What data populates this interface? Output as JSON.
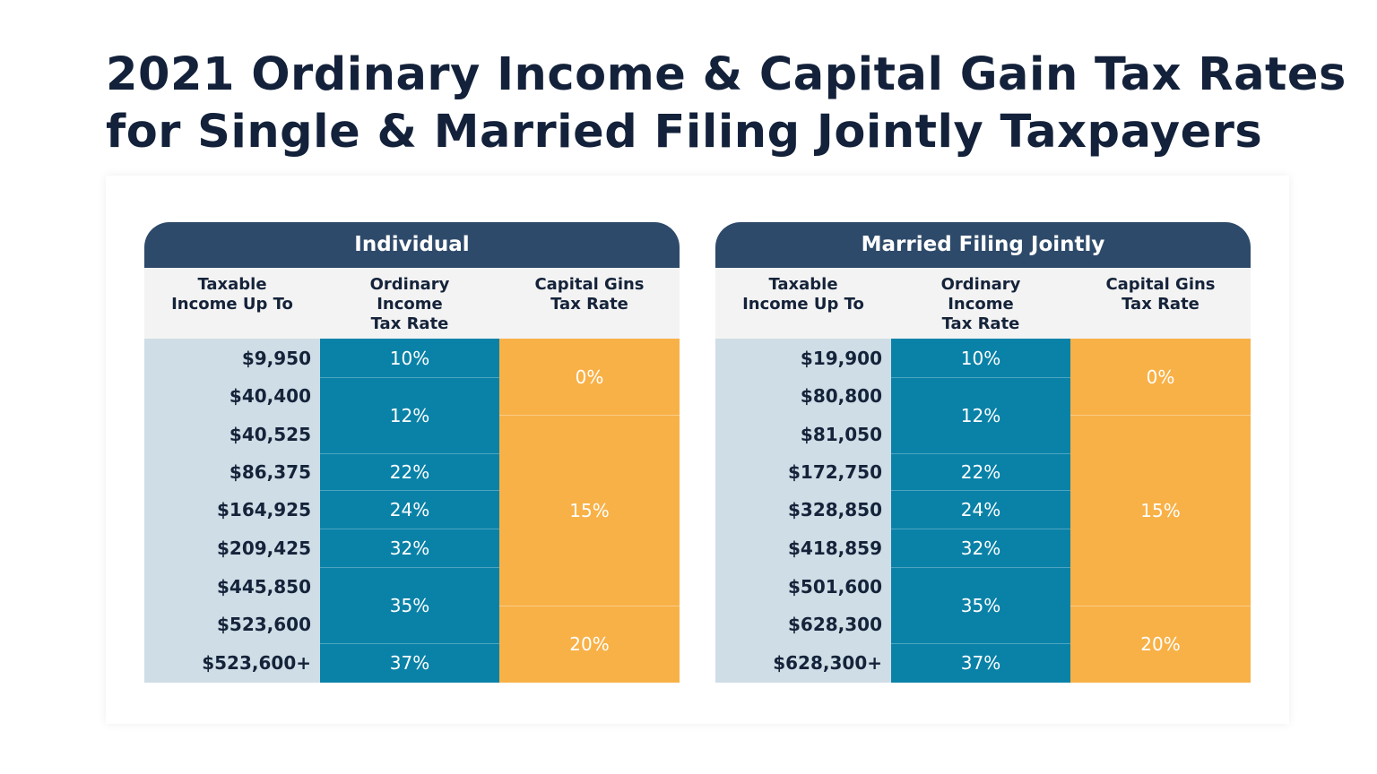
{
  "title": {
    "line1": "2021 Ordinary Income & Capital Gain Tax Rates",
    "line2": "for Single & Married Filing Jointly Taxpayers"
  },
  "chart_data": {
    "type": "table",
    "title": "2021 Ordinary Income & Capital Gain Tax Rates for Single & Married Filing Jointly Taxpayers",
    "tables": [
      {
        "name": "Individual",
        "columns": [
          "Taxable\nIncome Up To",
          "Ordinary\nIncome\nTax Rate",
          "Capital Gins\nTax Rate"
        ],
        "income": [
          "$9,950",
          "$40,400",
          "$40,525",
          "$86,375",
          "$164,925",
          "$209,425",
          "$445,850",
          "$523,600",
          "$523,600+"
        ],
        "ordinary_rates": [
          {
            "label": "10%",
            "start": 0,
            "span": 1
          },
          {
            "label": "12%",
            "start": 1,
            "span": 2
          },
          {
            "label": "22%",
            "start": 3,
            "span": 1
          },
          {
            "label": "24%",
            "start": 4,
            "span": 1
          },
          {
            "label": "32%",
            "start": 5,
            "span": 1
          },
          {
            "label": "35%",
            "start": 6,
            "span": 2
          },
          {
            "label": "37%",
            "start": 8,
            "span": 1
          }
        ],
        "capital_rates": [
          {
            "label": "0%",
            "start": 0,
            "span": 2
          },
          {
            "label": "15%",
            "start": 2,
            "span": 5
          },
          {
            "label": "20%",
            "start": 7,
            "span": 2
          }
        ]
      },
      {
        "name": "Married Filing Jointly",
        "columns": [
          "Taxable\nIncome Up To",
          "Ordinary\nIncome\nTax Rate",
          "Capital Gins\nTax Rate"
        ],
        "income": [
          "$19,900",
          "$80,800",
          "$81,050",
          "$172,750",
          "$328,850",
          "$418,859",
          "$501,600",
          "$628,300",
          "$628,300+"
        ],
        "ordinary_rates": [
          {
            "label": "10%",
            "start": 0,
            "span": 1
          },
          {
            "label": "12%",
            "start": 1,
            "span": 2
          },
          {
            "label": "22%",
            "start": 3,
            "span": 1
          },
          {
            "label": "24%",
            "start": 4,
            "span": 1
          },
          {
            "label": "32%",
            "start": 5,
            "span": 1
          },
          {
            "label": "35%",
            "start": 6,
            "span": 2
          },
          {
            "label": "37%",
            "start": 8,
            "span": 1
          }
        ],
        "capital_rates": [
          {
            "label": "0%",
            "start": 0,
            "span": 2
          },
          {
            "label": "15%",
            "start": 2,
            "span": 5
          },
          {
            "label": "20%",
            "start": 7,
            "span": 2
          }
        ]
      }
    ]
  }
}
